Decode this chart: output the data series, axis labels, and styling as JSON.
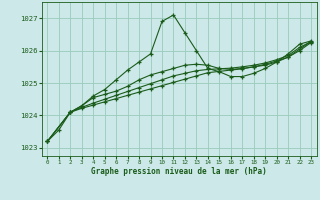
{
  "title": "Graphe pression niveau de la mer (hPa)",
  "xlim": [
    -0.5,
    23.5
  ],
  "ylim": [
    1022.75,
    1027.5
  ],
  "yticks": [
    1023,
    1024,
    1025,
    1026,
    1027
  ],
  "xticks": [
    0,
    1,
    2,
    3,
    4,
    5,
    6,
    7,
    8,
    9,
    10,
    11,
    12,
    13,
    14,
    15,
    16,
    17,
    18,
    19,
    20,
    21,
    22,
    23
  ],
  "background_color": "#cce8e8",
  "grid_color": "#99ccbb",
  "line_color": "#1a5c1a",
  "series": [
    {
      "x": [
        0,
        1,
        2,
        3,
        4,
        5,
        6,
        7,
        8,
        9,
        10,
        11,
        12,
        13,
        14,
        15,
        16,
        17,
        18,
        19,
        20,
        21,
        22,
        23
      ],
      "y": [
        1023.2,
        1023.55,
        1024.1,
        1024.3,
        1024.6,
        1024.8,
        1025.1,
        1025.4,
        1025.65,
        1025.9,
        1026.9,
        1027.1,
        1026.55,
        1026.0,
        1025.45,
        1025.35,
        1025.2,
        1025.2,
        1025.3,
        1025.45,
        1025.65,
        1025.9,
        1026.2,
        1026.3
      ]
    },
    {
      "x": [
        0,
        2,
        3,
        4,
        5,
        6,
        7,
        8,
        9,
        10,
        11,
        12,
        13,
        14,
        15,
        16,
        17,
        18,
        19,
        20,
        21,
        22,
        23
      ],
      "y": [
        1023.2,
        1024.1,
        1024.3,
        1024.55,
        1024.65,
        1024.75,
        1024.9,
        1025.1,
        1025.25,
        1025.35,
        1025.45,
        1025.55,
        1025.58,
        1025.55,
        1025.45,
        1025.42,
        1025.45,
        1025.5,
        1025.55,
        1025.65,
        1025.8,
        1026.05,
        1026.28
      ]
    },
    {
      "x": [
        0,
        2,
        3,
        4,
        5,
        6,
        7,
        8,
        9,
        10,
        11,
        12,
        13,
        14,
        15,
        16,
        17,
        18,
        19,
        20,
        21,
        22,
        23
      ],
      "y": [
        1023.2,
        1024.1,
        1024.25,
        1024.38,
        1024.5,
        1024.62,
        1024.74,
        1024.86,
        1024.98,
        1025.1,
        1025.22,
        1025.3,
        1025.38,
        1025.42,
        1025.44,
        1025.46,
        1025.5,
        1025.55,
        1025.62,
        1025.72,
        1025.85,
        1026.1,
        1026.28
      ]
    },
    {
      "x": [
        0,
        2,
        3,
        4,
        5,
        6,
        7,
        8,
        9,
        10,
        11,
        12,
        13,
        14,
        15,
        16,
        17,
        18,
        19,
        20,
        21,
        22,
        23
      ],
      "y": [
        1023.2,
        1024.1,
        1024.22,
        1024.32,
        1024.42,
        1024.52,
        1024.62,
        1024.72,
        1024.82,
        1024.92,
        1025.02,
        1025.12,
        1025.22,
        1025.32,
        1025.36,
        1025.4,
        1025.44,
        1025.5,
        1025.58,
        1025.68,
        1025.8,
        1026.0,
        1026.25
      ]
    }
  ]
}
